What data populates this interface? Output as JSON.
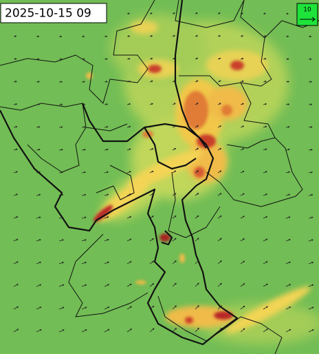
{
  "timestamp": "2025-10-15 09",
  "wind_legend": {
    "label": "10"
  }
}
